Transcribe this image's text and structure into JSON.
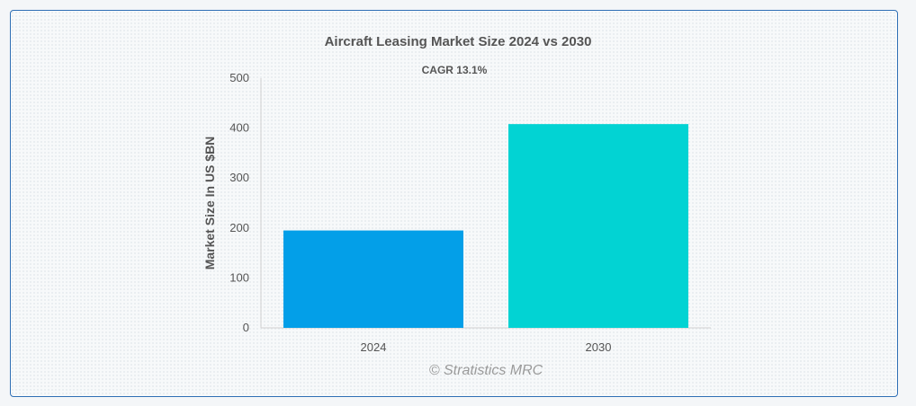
{
  "colors": {
    "bar_2024": "#039fe8",
    "bar_2030": "#02d3d3",
    "axis": "#d0d0d0",
    "border": "#2f6fb5"
  },
  "chart_data": {
    "type": "bar",
    "title": "Aircraft Leasing Market Size 2024 vs 2030",
    "subtitle": "CAGR 13.1%",
    "xlabel": "",
    "ylabel": "Market Size In US $BN",
    "categories": [
      "2024",
      "2030"
    ],
    "values": [
      195,
      408
    ],
    "ylim": [
      0,
      500
    ],
    "yticks": [
      0,
      100,
      200,
      300,
      400,
      500
    ],
    "grid": false,
    "legend": "none"
  },
  "watermark": "© Stratistics MRC"
}
